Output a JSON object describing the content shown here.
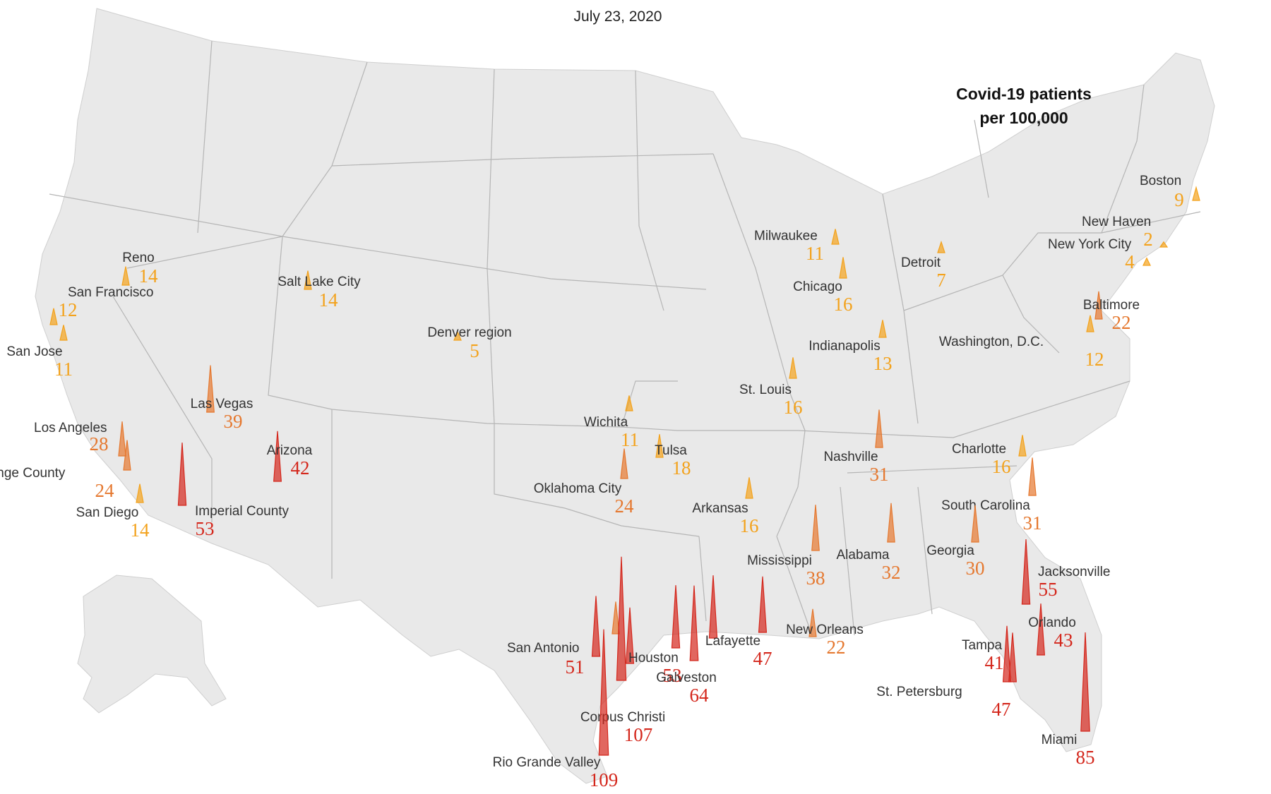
{
  "date": "July 23, 2020",
  "legend": {
    "line1": "Covid-19 patients",
    "line2": "per 100,000"
  },
  "colors": {
    "land": "#e9e9e9",
    "border": "#b5b5b5",
    "low": "#f3a21c",
    "mid": "#e5782f",
    "high": "#d4271c"
  },
  "markers": [
    {
      "name": "San Francisco",
      "value": "12"
    },
    {
      "name": "San Jose",
      "value": "11"
    },
    {
      "name": "Reno",
      "value": "14"
    },
    {
      "name": "Salt Lake City",
      "value": "14"
    },
    {
      "name": "Denver region",
      "value": "5"
    },
    {
      "name": "Los Angeles",
      "value": "28"
    },
    {
      "name": "Orange County",
      "value": "24"
    },
    {
      "name": "San Diego",
      "value": "14"
    },
    {
      "name": "Imperial County",
      "value": "53"
    },
    {
      "name": "Las Vegas",
      "value": "39"
    },
    {
      "name": "Arizona",
      "value": "42"
    },
    {
      "name": "Wichita",
      "value": "11"
    },
    {
      "name": "Tulsa",
      "value": "18"
    },
    {
      "name": "Oklahoma City",
      "value": "24"
    },
    {
      "name": "Arkansas",
      "value": "16"
    },
    {
      "name": "Milwaukee",
      "value": "11"
    },
    {
      "name": "Chicago",
      "value": "16"
    },
    {
      "name": "Detroit",
      "value": "7"
    },
    {
      "name": "Indianapolis",
      "value": "13"
    },
    {
      "name": "St. Louis",
      "value": "16"
    },
    {
      "name": "Nashville",
      "value": "31"
    },
    {
      "name": "Charlotte",
      "value": "16"
    },
    {
      "name": "South Carolina",
      "value": "31"
    },
    {
      "name": "Boston",
      "value": "9"
    },
    {
      "name": "New Haven",
      "value": "2"
    },
    {
      "name": "New York City",
      "value": "4"
    },
    {
      "name": "Baltimore",
      "value": "22"
    },
    {
      "name": "Washington, D.C.",
      "value": "12"
    },
    {
      "name": "Mississippi",
      "value": "38"
    },
    {
      "name": "Alabama",
      "value": "32"
    },
    {
      "name": "Georgia",
      "value": "30"
    },
    {
      "name": "Jacksonville",
      "value": "55"
    },
    {
      "name": "Orlando",
      "value": "43"
    },
    {
      "name": "Tampa",
      "value": "41"
    },
    {
      "name": "St. Petersburg",
      "value": "47"
    },
    {
      "name": "Miami",
      "value": "85"
    },
    {
      "name": "Lafayette",
      "value": "47"
    },
    {
      "name": "New Orleans",
      "value": "22"
    },
    {
      "name": "San Antonio",
      "value": "51"
    },
    {
      "name": "Houston",
      "value": "53"
    },
    {
      "name": "Galveston",
      "value": "64"
    },
    {
      "name": "Corpus Christi",
      "value": "107"
    },
    {
      "name": "Rio Grande Valley",
      "value": "109"
    }
  ]
}
